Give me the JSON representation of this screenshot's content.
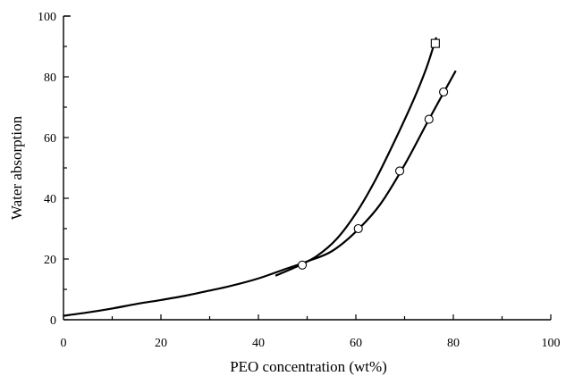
{
  "chart_data": {
    "type": "scatter",
    "title": "",
    "xlabel": "PEO concentration (wt%)",
    "ylabel": "Water absorption",
    "xlim": [
      0,
      100
    ],
    "ylim": [
      0,
      100
    ],
    "xticks": [
      0,
      20,
      40,
      60,
      80,
      100
    ],
    "yticks": [
      0,
      20,
      40,
      60,
      80,
      100
    ],
    "grid": false,
    "series": [
      {
        "marker": "circle",
        "points": [
          {
            "x": 49,
            "y": 18
          },
          {
            "x": 60.5,
            "y": 30
          },
          {
            "x": 69,
            "y": 49
          },
          {
            "x": 75,
            "y": 66
          },
          {
            "x": 78,
            "y": 75
          }
        ],
        "fit_curve": [
          [
            0,
            1.3
          ],
          [
            5,
            2.4
          ],
          [
            10,
            3.7
          ],
          [
            15,
            5.2
          ],
          [
            20,
            6.5
          ],
          [
            25,
            7.9
          ],
          [
            30,
            9.6
          ],
          [
            35,
            11.4
          ],
          [
            40,
            13.6
          ],
          [
            45,
            16.4
          ],
          [
            50,
            19.2
          ],
          [
            55,
            22.5
          ],
          [
            60,
            29
          ],
          [
            65,
            38
          ],
          [
            70,
            51
          ],
          [
            75,
            66
          ],
          [
            80.5,
            82
          ]
        ]
      },
      {
        "marker": "square",
        "points": [
          {
            "x": 76.3,
            "y": 91
          }
        ],
        "fit_curve": [
          [
            43.5,
            14.5
          ],
          [
            48,
            17.6
          ],
          [
            52,
            21
          ],
          [
            56,
            26.5
          ],
          [
            60,
            35
          ],
          [
            64,
            46
          ],
          [
            68,
            59
          ],
          [
            72,
            73
          ],
          [
            74.5,
            83
          ],
          [
            76.5,
            93
          ]
        ]
      }
    ]
  }
}
